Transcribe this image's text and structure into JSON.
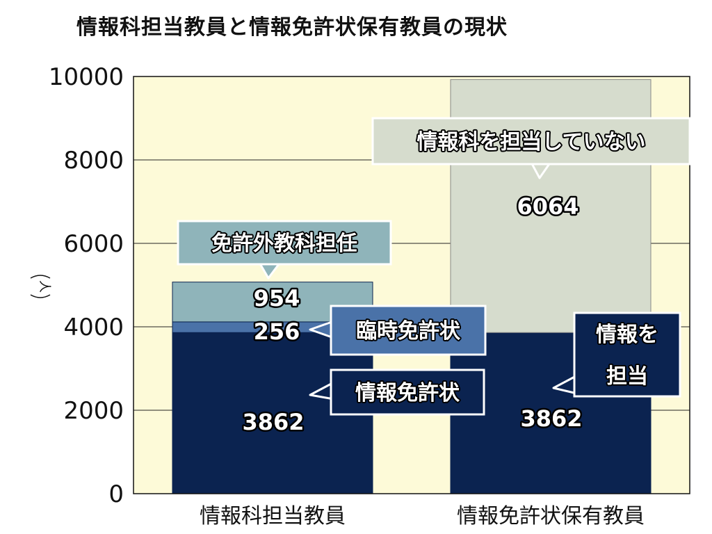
{
  "title": "情報科担当教員と情報免許状保有教員の現状",
  "chart_data": {
    "type": "bar",
    "stacked": true,
    "categories": [
      "情報科担当教員",
      "情報免許状保有教員"
    ],
    "ylim": [
      0,
      10000
    ],
    "yticks": [
      0,
      2000,
      4000,
      6000,
      8000,
      10000
    ],
    "ylabel": "人",
    "grid": true,
    "series": [
      {
        "name": "情報免許状",
        "values": [
          3862,
          null
        ],
        "color": "#0b2350",
        "label_color": "#ffffff"
      },
      {
        "name": "臨時免許状",
        "values": [
          256,
          null
        ],
        "color": "#4a72a8",
        "label_color": "#ffffff"
      },
      {
        "name": "免許外教科担任",
        "values": [
          954,
          null
        ],
        "color": "#8fb4ba",
        "label_color": "#ffffff"
      },
      {
        "name": "情報を担当",
        "values": [
          null,
          3862
        ],
        "color": "#0b2350",
        "label_color": "#ffffff"
      },
      {
        "name": "情報科を担当していない",
        "values": [
          null,
          6064
        ],
        "color": "#d6dccd",
        "label_color": "#ffffff"
      }
    ],
    "callouts": [
      {
        "text": "免許外教科担任",
        "fill": "#8fb4ba",
        "text_color": "#ffffff"
      },
      {
        "text": "臨時免許状",
        "fill": "#4a72a8",
        "text_color": "#ffffff"
      },
      {
        "text": "情報免許状",
        "fill": "#0b2350",
        "text_color": "#ffffff"
      },
      {
        "text": "情報科を担当していない",
        "fill": "#d6dccd",
        "text_color": "#ffffff"
      },
      {
        "text": "情報を\n担当",
        "fill": "#0b2350",
        "text_color": "#ffffff"
      }
    ],
    "plot_background": "#fdfad8"
  }
}
